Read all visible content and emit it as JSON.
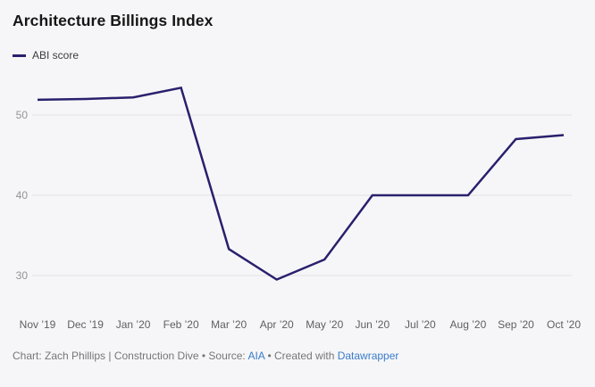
{
  "title": "Architecture Billings Index",
  "legend": {
    "label": "ABI score"
  },
  "chart_data": {
    "type": "line",
    "title": "Architecture Billings Index",
    "x": [
      "Nov ’19",
      "Dec ’19",
      "Jan ’20",
      "Feb ’20",
      "Mar ’20",
      "Apr ’20",
      "May ’20",
      "Jun ’20",
      "Jul ’20",
      "Aug ’20",
      "Sep ’20",
      "Oct ’20"
    ],
    "series": [
      {
        "name": "ABI score",
        "color": "#29206d",
        "values": [
          51.9,
          52.0,
          52.2,
          53.4,
          33.3,
          29.5,
          32.0,
          40.0,
          40.0,
          40.0,
          47.0,
          47.5
        ]
      }
    ],
    "yticks": [
      30,
      40,
      50
    ],
    "ylim": [
      27.5,
      55
    ],
    "xlabel": "",
    "ylabel": "",
    "grid": "horizontal",
    "legend_position": "top-left"
  },
  "footer": {
    "credit": "Chart: Zach Phillips | Construction Dive",
    "sep1": " • ",
    "source_label": "Source: ",
    "source_link": "AIA",
    "sep2": " • ",
    "created_label": "Created with ",
    "tool_link": "Datawrapper"
  },
  "colors": {
    "line": "#29206d",
    "grid": "#e2e2e5",
    "background": "#f6f6f8",
    "link": "#3a7cc9"
  }
}
